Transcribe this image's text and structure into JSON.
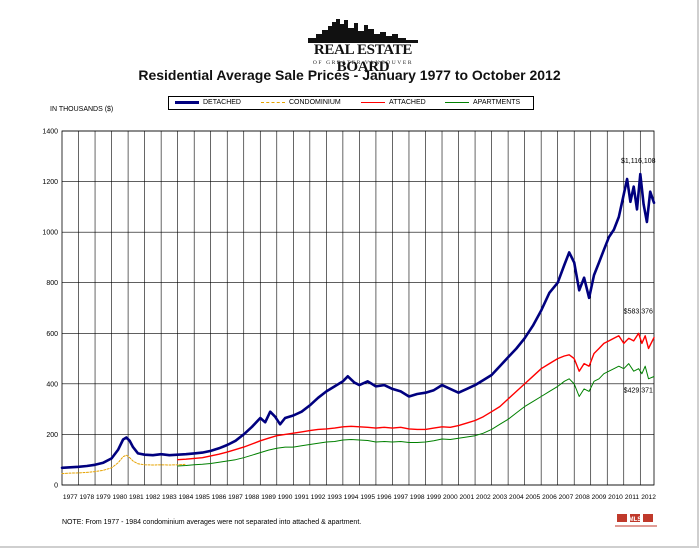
{
  "header": {
    "org_name": "REAL ESTATE BOARD",
    "org_sub": "OF GREATER VANCOUVER",
    "title": "Residential Average Sale Prices  -  January 1977 to October 2012"
  },
  "footer": {
    "note": "NOTE:  From 1977 - 1984 condominium averages were not separated into attached & apartment.",
    "badge_text": "MLS"
  },
  "colors": {
    "detached": "#00007f",
    "condominium": "#e6a300",
    "attached": "#ff0000",
    "apartments": "#008000",
    "grid": "#000000"
  },
  "chart_data": {
    "type": "line",
    "title": "Residential Average Sale Prices  -  January 1977 to October 2012",
    "ylabel": "IN THOUSANDS ($)",
    "xlabel": "",
    "ylim": [
      0,
      1400
    ],
    "yticks": [
      0,
      200,
      400,
      600,
      800,
      1000,
      1200,
      1400
    ],
    "xlim": [
      1977.0,
      2012.83
    ],
    "xticks": [
      "1977",
      "1978",
      "1979",
      "1980",
      "1981",
      "1982",
      "1983",
      "1984",
      "1985",
      "1986",
      "1987",
      "1988",
      "1989",
      "1990",
      "1991",
      "1992",
      "1993",
      "1994",
      "1995",
      "1996",
      "1997",
      "1998",
      "1999",
      "2000",
      "2001",
      "2002",
      "2003",
      "2004",
      "2005",
      "2006",
      "2007",
      "2008",
      "2009",
      "2010",
      "2011",
      "2012"
    ],
    "grid": true,
    "legend_position": "top-center",
    "series": [
      {
        "name": "DETACHED",
        "x": [
          1977.0,
          1977.5,
          1978.0,
          1978.5,
          1979.0,
          1979.5,
          1980.0,
          1980.4,
          1980.7,
          1980.9,
          1981.1,
          1981.3,
          1981.6,
          1982.0,
          1982.5,
          1983.0,
          1983.5,
          1984.0,
          1984.5,
          1985.0,
          1985.5,
          1986.0,
          1986.5,
          1987.0,
          1987.5,
          1988.0,
          1988.5,
          1989.0,
          1989.3,
          1989.6,
          1989.9,
          1990.2,
          1990.5,
          1991.0,
          1991.5,
          1992.0,
          1992.5,
          1993.0,
          1993.5,
          1994.0,
          1994.3,
          1994.7,
          1995.0,
          1995.5,
          1996.0,
          1996.5,
          1997.0,
          1997.5,
          1998.0,
          1998.5,
          1999.0,
          1999.5,
          2000.0,
          2000.5,
          2001.0,
          2001.5,
          2002.0,
          2002.5,
          2003.0,
          2003.5,
          2004.0,
          2004.5,
          2005.0,
          2005.5,
          2006.0,
          2006.5,
          2007.0,
          2007.4,
          2007.7,
          2008.0,
          2008.3,
          2008.6,
          2008.9,
          2009.2,
          2009.5,
          2009.8,
          2010.1,
          2010.4,
          2010.7,
          2011.0,
          2011.2,
          2011.4,
          2011.6,
          2011.8,
          2012.0,
          2012.2,
          2012.4,
          2012.6,
          2012.83
        ],
        "values": [
          68,
          70,
          72,
          75,
          80,
          88,
          105,
          140,
          180,
          188,
          175,
          150,
          125,
          120,
          118,
          122,
          118,
          120,
          122,
          125,
          128,
          135,
          145,
          158,
          175,
          200,
          230,
          265,
          248,
          290,
          270,
          240,
          265,
          275,
          290,
          315,
          345,
          370,
          390,
          410,
          430,
          405,
          395,
          410,
          390,
          395,
          380,
          370,
          350,
          360,
          365,
          375,
          395,
          380,
          365,
          380,
          395,
          415,
          435,
          470,
          505,
          540,
          580,
          630,
          690,
          760,
          800,
          870,
          920,
          880,
          770,
          820,
          740,
          830,
          880,
          930,
          980,
          1010,
          1060,
          1150,
          1210,
          1120,
          1180,
          1090,
          1230,
          1110,
          1040,
          1160,
          1116
        ]
      },
      {
        "name": "CONDOMINIUM",
        "x": [
          1977.0,
          1977.5,
          1978.0,
          1978.5,
          1979.0,
          1979.5,
          1980.0,
          1980.4,
          1980.7,
          1980.9,
          1981.1,
          1981.3,
          1981.6,
          1982.0,
          1982.5,
          1983.0,
          1983.5,
          1984.0,
          1984.5
        ],
        "values": [
          45,
          47,
          48,
          50,
          53,
          58,
          68,
          88,
          112,
          118,
          108,
          95,
          84,
          80,
          79,
          80,
          79,
          80,
          82
        ]
      },
      {
        "name": "ATTACHED",
        "x": [
          1984.0,
          1984.5,
          1985.0,
          1985.5,
          1986.0,
          1986.5,
          1987.0,
          1987.5,
          1988.0,
          1988.5,
          1989.0,
          1989.5,
          1990.0,
          1990.5,
          1991.0,
          1991.5,
          1992.0,
          1992.5,
          1993.0,
          1993.5,
          1994.0,
          1994.5,
          1995.0,
          1995.5,
          1996.0,
          1996.5,
          1997.0,
          1997.5,
          1998.0,
          1998.5,
          1999.0,
          1999.5,
          2000.0,
          2000.5,
          2001.0,
          2001.5,
          2002.0,
          2002.5,
          2003.0,
          2003.5,
          2004.0,
          2004.5,
          2005.0,
          2005.5,
          2006.0,
          2006.5,
          2007.0,
          2007.4,
          2007.7,
          2008.0,
          2008.3,
          2008.6,
          2008.9,
          2009.2,
          2009.5,
          2009.8,
          2010.1,
          2010.4,
          2010.7,
          2011.0,
          2011.3,
          2011.6,
          2011.9,
          2012.1,
          2012.3,
          2012.5,
          2012.83
        ],
        "values": [
          100,
          102,
          105,
          108,
          115,
          122,
          130,
          140,
          150,
          162,
          175,
          185,
          195,
          200,
          205,
          210,
          215,
          220,
          222,
          225,
          230,
          232,
          230,
          228,
          225,
          228,
          225,
          228,
          222,
          220,
          220,
          225,
          230,
          228,
          235,
          245,
          255,
          270,
          290,
          310,
          340,
          370,
          400,
          430,
          460,
          480,
          500,
          510,
          515,
          500,
          450,
          480,
          470,
          520,
          540,
          560,
          570,
          580,
          590,
          560,
          580,
          570,
          600,
          560,
          590,
          540,
          583
        ]
      },
      {
        "name": "APARTMENTS",
        "x": [
          1984.0,
          1984.5,
          1985.0,
          1985.5,
          1986.0,
          1986.5,
          1987.0,
          1987.5,
          1988.0,
          1988.5,
          1989.0,
          1989.5,
          1990.0,
          1990.5,
          1991.0,
          1991.5,
          1992.0,
          1992.5,
          1993.0,
          1993.5,
          1994.0,
          1994.5,
          1995.0,
          1995.5,
          1996.0,
          1996.5,
          1997.0,
          1997.5,
          1998.0,
          1998.5,
          1999.0,
          1999.5,
          2000.0,
          2000.5,
          2001.0,
          2001.5,
          2002.0,
          2002.5,
          2003.0,
          2003.5,
          2004.0,
          2004.5,
          2005.0,
          2005.5,
          2006.0,
          2006.5,
          2007.0,
          2007.4,
          2007.7,
          2008.0,
          2008.3,
          2008.6,
          2008.9,
          2009.2,
          2009.5,
          2009.8,
          2010.1,
          2010.4,
          2010.7,
          2011.0,
          2011.3,
          2011.6,
          2011.9,
          2012.1,
          2012.3,
          2012.5,
          2012.83
        ],
        "values": [
          75,
          77,
          80,
          82,
          85,
          90,
          95,
          100,
          108,
          118,
          128,
          138,
          145,
          150,
          150,
          155,
          160,
          165,
          170,
          172,
          178,
          180,
          178,
          176,
          170,
          172,
          170,
          172,
          168,
          168,
          170,
          175,
          182,
          180,
          185,
          190,
          195,
          205,
          220,
          240,
          260,
          285,
          310,
          330,
          350,
          370,
          390,
          410,
          420,
          400,
          350,
          380,
          370,
          410,
          420,
          440,
          450,
          460,
          470,
          460,
          480,
          450,
          460,
          440,
          470,
          420,
          429
        ]
      }
    ],
    "annotations": [
      {
        "text": "$1,116,108",
        "x": 2012.0,
        "y": 1116
      },
      {
        "text": "$583,376",
        "x": 2012.0,
        "y": 583
      },
      {
        "text": "$429,371",
        "x": 2012.0,
        "y": 429
      }
    ]
  }
}
